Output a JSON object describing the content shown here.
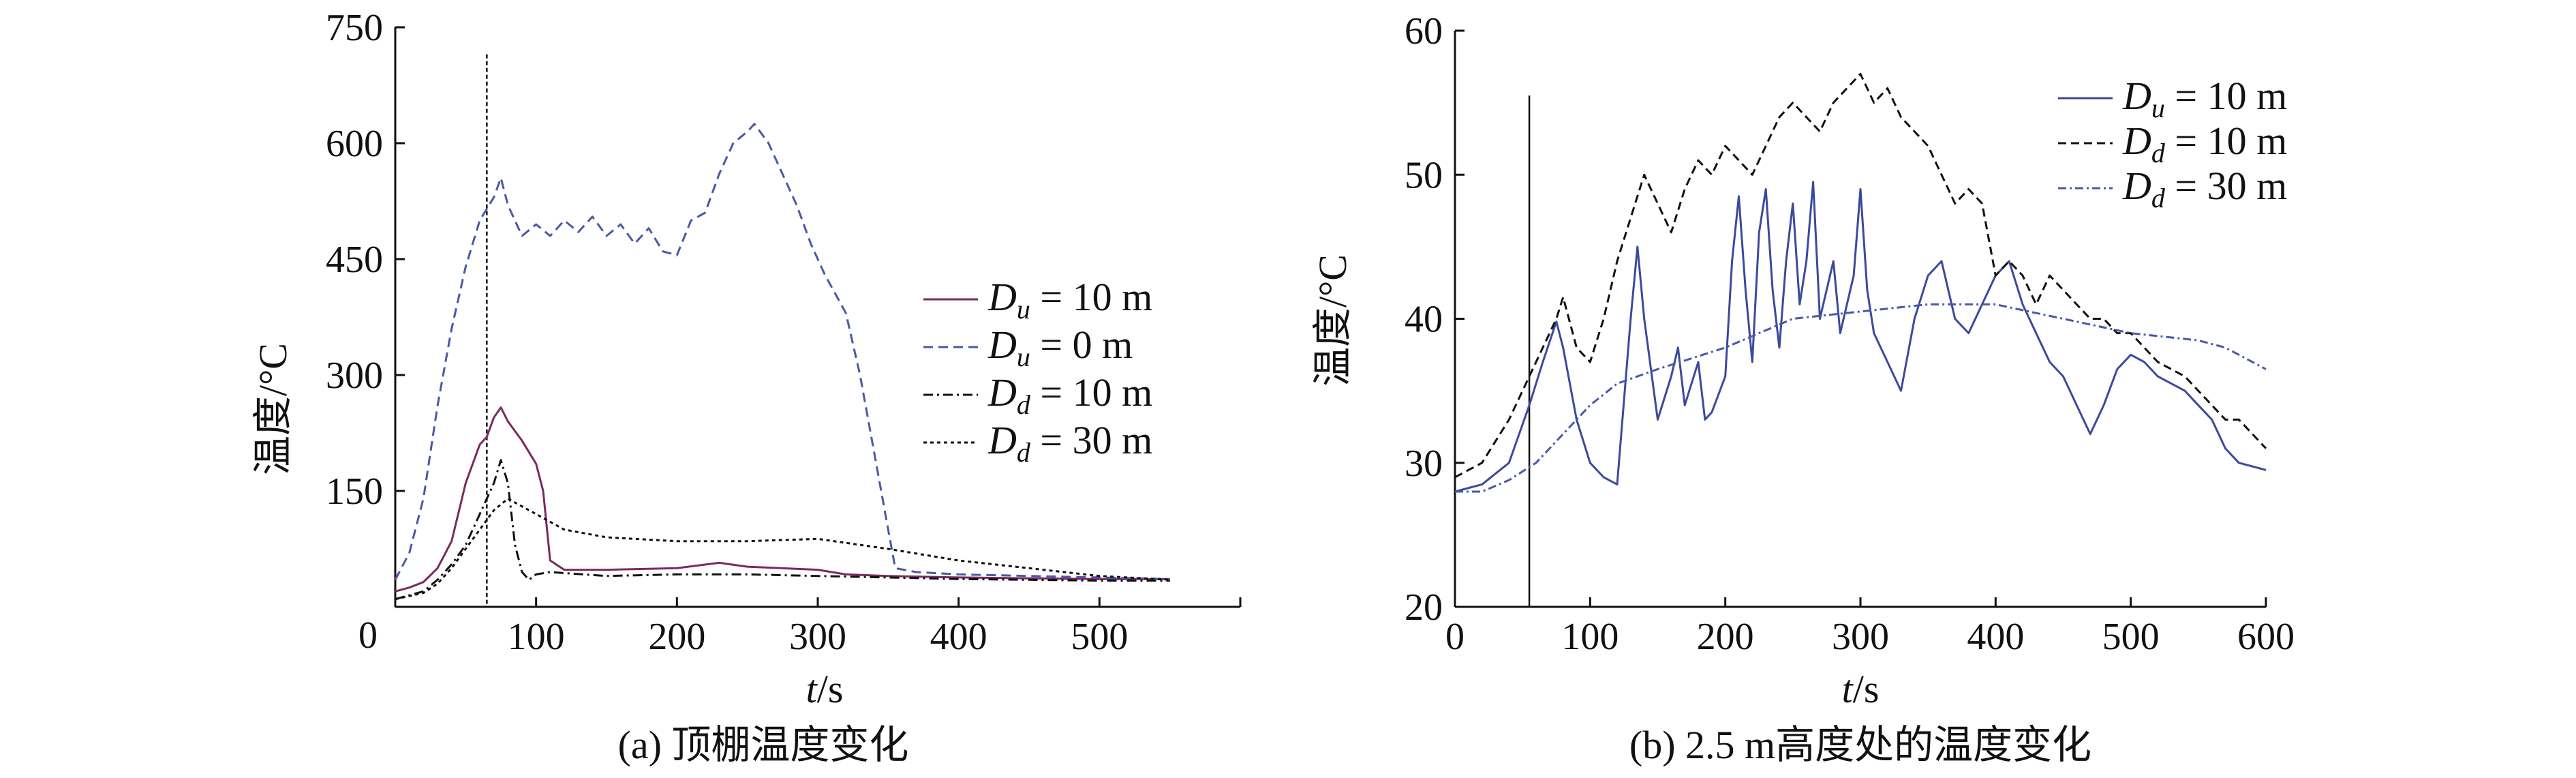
{
  "figure": {
    "caption_a": "(a) 顶棚温度变化",
    "caption_b": "(b) 2.5 m高度处的温度变化"
  },
  "chart_data": [
    {
      "type": "line",
      "id": "a",
      "title": "(a) 顶棚温度变化",
      "xlabel_italic": "t",
      "xlabel_rest": "/s",
      "ylabel": "温度/°C",
      "xlim": [
        0,
        600
      ],
      "ylim": [
        0,
        750
      ],
      "xticks": [
        0,
        100,
        200,
        300,
        400,
        500
      ],
      "yticks": [
        150,
        300,
        450,
        600,
        750
      ],
      "x_origin_label": "0",
      "grid": false,
      "legend_position": "middle-right",
      "vline_x": 65,
      "colors": {
        "axis": "#111111",
        "purple": "#7b2a5e",
        "blue": "#4a58a8",
        "black": "#111111"
      },
      "series": [
        {
          "name": "Du = 10 m",
          "sym": "D",
          "sub": "u",
          "rest": " = 10 m",
          "color": "#7b2a5e",
          "dash": "",
          "points": [
            [
              0,
              20
            ],
            [
              10,
              25
            ],
            [
              20,
              32
            ],
            [
              30,
              50
            ],
            [
              40,
              85
            ],
            [
              50,
              160
            ],
            [
              60,
              210
            ],
            [
              65,
              220
            ],
            [
              70,
              245
            ],
            [
              75,
              258
            ],
            [
              80,
              240
            ],
            [
              90,
              215
            ],
            [
              100,
              185
            ],
            [
              105,
              150
            ],
            [
              110,
              60
            ],
            [
              120,
              48
            ],
            [
              150,
              48
            ],
            [
              200,
              50
            ],
            [
              230,
              57
            ],
            [
              250,
              52
            ],
            [
              300,
              48
            ],
            [
              320,
              42
            ],
            [
              350,
              40
            ],
            [
              400,
              38
            ],
            [
              450,
              37
            ],
            [
              500,
              36
            ],
            [
              550,
              36
            ]
          ]
        },
        {
          "name": "Du = 0 m",
          "sym": "D",
          "sub": "u",
          "rest": " = 0 m",
          "color": "#4a58a8",
          "dash": "14,8",
          "points": [
            [
              0,
              35
            ],
            [
              10,
              70
            ],
            [
              20,
              140
            ],
            [
              30,
              260
            ],
            [
              40,
              360
            ],
            [
              50,
              440
            ],
            [
              60,
              500
            ],
            [
              70,
              530
            ],
            [
              75,
              555
            ],
            [
              80,
              520
            ],
            [
              90,
              480
            ],
            [
              100,
              495
            ],
            [
              110,
              480
            ],
            [
              120,
              500
            ],
            [
              130,
              485
            ],
            [
              140,
              505
            ],
            [
              150,
              480
            ],
            [
              160,
              495
            ],
            [
              170,
              470
            ],
            [
              180,
              490
            ],
            [
              190,
              460
            ],
            [
              200,
              455
            ],
            [
              210,
              500
            ],
            [
              220,
              510
            ],
            [
              230,
              560
            ],
            [
              240,
              600
            ],
            [
              250,
              615
            ],
            [
              255,
              625
            ],
            [
              265,
              600
            ],
            [
              275,
              560
            ],
            [
              285,
              520
            ],
            [
              295,
              470
            ],
            [
              305,
              430
            ],
            [
              320,
              380
            ],
            [
              330,
              300
            ],
            [
              340,
              200
            ],
            [
              350,
              100
            ],
            [
              355,
              50
            ],
            [
              370,
              45
            ],
            [
              400,
              42
            ],
            [
              450,
              40
            ],
            [
              500,
              38
            ],
            [
              550,
              36
            ]
          ]
        },
        {
          "name": "Dd = 10 m",
          "sym": "D",
          "sub": "d",
          "rest": " = 10 m",
          "color": "#111111",
          "dash": "14,6,3,6",
          "points": [
            [
              0,
              10
            ],
            [
              20,
              20
            ],
            [
              30,
              35
            ],
            [
              40,
              55
            ],
            [
              50,
              80
            ],
            [
              60,
              120
            ],
            [
              70,
              160
            ],
            [
              75,
              190
            ],
            [
              80,
              160
            ],
            [
              85,
              80
            ],
            [
              90,
              45
            ],
            [
              95,
              35
            ],
            [
              100,
              42
            ],
            [
              110,
              45
            ],
            [
              150,
              40
            ],
            [
              200,
              42
            ],
            [
              250,
              42
            ],
            [
              300,
              40
            ],
            [
              350,
              38
            ],
            [
              400,
              36
            ],
            [
              450,
              35
            ],
            [
              500,
              34
            ],
            [
              550,
              34
            ]
          ]
        },
        {
          "name": "Dd = 30 m",
          "sym": "D",
          "sub": "d",
          "rest": " = 30 m",
          "color": "#111111",
          "dash": "5,5",
          "points": [
            [
              0,
              10
            ],
            [
              20,
              18
            ],
            [
              30,
              30
            ],
            [
              40,
              50
            ],
            [
              50,
              75
            ],
            [
              60,
              100
            ],
            [
              70,
              125
            ],
            [
              80,
              140
            ],
            [
              90,
              130
            ],
            [
              100,
              120
            ],
            [
              120,
              100
            ],
            [
              150,
              90
            ],
            [
              200,
              85
            ],
            [
              250,
              85
            ],
            [
              300,
              88
            ],
            [
              350,
              75
            ],
            [
              400,
              60
            ],
            [
              450,
              50
            ],
            [
              500,
              40
            ],
            [
              550,
              35
            ]
          ]
        }
      ]
    },
    {
      "type": "line",
      "id": "b",
      "title": "(b) 2.5 m高度处的温度变化",
      "xlabel_italic": "t",
      "xlabel_rest": "/s",
      "ylabel": "温度/°C",
      "xlim": [
        0,
        600
      ],
      "ylim": [
        20,
        60
      ],
      "xticks": [
        0,
        100,
        200,
        300,
        400,
        500,
        600
      ],
      "yticks": [
        20,
        30,
        40,
        50,
        60
      ],
      "grid": false,
      "legend_position": "top-right",
      "vline_x": 55,
      "colors": {
        "axis": "#111111",
        "blue": "#3b4a9c",
        "black": "#111111",
        "blue_dashdot": "#4a58a8"
      },
      "series": [
        {
          "name": "Du = 10 m",
          "sym": "D",
          "sub": "u",
          "rest": " = 10 m",
          "color": "#3b4a9c",
          "dash": "",
          "points": [
            [
              0,
              28
            ],
            [
              20,
              28.5
            ],
            [
              40,
              30
            ],
            [
              55,
              34
            ],
            [
              65,
              37
            ],
            [
              75,
              39.8
            ],
            [
              80,
              38
            ],
            [
              90,
              33
            ],
            [
              100,
              30
            ],
            [
              110,
              29
            ],
            [
              120,
              28.5
            ],
            [
              130,
              40
            ],
            [
              135,
              45
            ],
            [
              140,
              40
            ],
            [
              150,
              33
            ],
            [
              160,
              36
            ],
            [
              165,
              38
            ],
            [
              170,
              34
            ],
            [
              180,
              37
            ],
            [
              185,
              33
            ],
            [
              190,
              33.5
            ],
            [
              200,
              36
            ],
            [
              205,
              44
            ],
            [
              210,
              48.5
            ],
            [
              215,
              42
            ],
            [
              220,
              37
            ],
            [
              225,
              46
            ],
            [
              230,
              49
            ],
            [
              235,
              42
            ],
            [
              240,
              38
            ],
            [
              245,
              44
            ],
            [
              250,
              48
            ],
            [
              255,
              41
            ],
            [
              260,
              44
            ],
            [
              265,
              49.5
            ],
            [
              270,
              40
            ],
            [
              275,
              42
            ],
            [
              280,
              44
            ],
            [
              285,
              39
            ],
            [
              290,
              41
            ],
            [
              295,
              43
            ],
            [
              300,
              49
            ],
            [
              305,
              42
            ],
            [
              310,
              39
            ],
            [
              320,
              37
            ],
            [
              330,
              35
            ],
            [
              340,
              40
            ],
            [
              350,
              43
            ],
            [
              360,
              44
            ],
            [
              370,
              40
            ],
            [
              380,
              39
            ],
            [
              390,
              41
            ],
            [
              400,
              43
            ],
            [
              410,
              44
            ],
            [
              420,
              41
            ],
            [
              430,
              39
            ],
            [
              440,
              37
            ],
            [
              450,
              36
            ],
            [
              460,
              34
            ],
            [
              470,
              32
            ],
            [
              480,
              34
            ],
            [
              490,
              36.5
            ],
            [
              500,
              37.5
            ],
            [
              510,
              37
            ],
            [
              520,
              36
            ],
            [
              530,
              35.5
            ],
            [
              540,
              35
            ],
            [
              550,
              34
            ],
            [
              560,
              33
            ],
            [
              570,
              31
            ],
            [
              580,
              30
            ],
            [
              600,
              29.5
            ]
          ]
        },
        {
          "name": "Dd = 10 m",
          "sym": "D",
          "sub": "d",
          "rest": " = 10 m",
          "color": "#111111",
          "dash": "12,7",
          "points": [
            [
              0,
              29
            ],
            [
              20,
              30
            ],
            [
              40,
              33
            ],
            [
              60,
              37
            ],
            [
              75,
              40
            ],
            [
              80,
              41.5
            ],
            [
              90,
              38
            ],
            [
              100,
              37
            ],
            [
              110,
              40
            ],
            [
              120,
              44
            ],
            [
              130,
              47
            ],
            [
              140,
              50
            ],
            [
              150,
              48
            ],
            [
              160,
              46
            ],
            [
              170,
              49
            ],
            [
              180,
              51
            ],
            [
              190,
              50
            ],
            [
              200,
              52
            ],
            [
              210,
              51
            ],
            [
              220,
              50
            ],
            [
              230,
              52
            ],
            [
              240,
              54
            ],
            [
              250,
              55
            ],
            [
              260,
              54
            ],
            [
              270,
              53
            ],
            [
              280,
              55
            ],
            [
              290,
              56
            ],
            [
              300,
              57
            ],
            [
              310,
              55
            ],
            [
              320,
              56
            ],
            [
              330,
              54
            ],
            [
              340,
              53
            ],
            [
              350,
              52
            ],
            [
              360,
              50
            ],
            [
              370,
              48
            ],
            [
              380,
              49
            ],
            [
              390,
              48
            ],
            [
              400,
              43
            ],
            [
              410,
              44
            ],
            [
              420,
              43
            ],
            [
              430,
              41
            ],
            [
              440,
              43
            ],
            [
              450,
              42
            ],
            [
              460,
              41
            ],
            [
              470,
              40
            ],
            [
              480,
              40
            ],
            [
              490,
              39
            ],
            [
              500,
              39
            ],
            [
              520,
              37
            ],
            [
              540,
              36
            ],
            [
              550,
              35
            ],
            [
              560,
              34
            ],
            [
              570,
              33
            ],
            [
              580,
              33
            ],
            [
              600,
              31
            ]
          ]
        },
        {
          "name": "Dd = 30 m",
          "sym": "D",
          "sub": "d",
          "rest": " = 30 m",
          "color": "#4a58a8",
          "dash": "12,5,3,5",
          "points": [
            [
              0,
              28
            ],
            [
              20,
              28
            ],
            [
              40,
              28.8
            ],
            [
              60,
              30
            ],
            [
              80,
              32
            ],
            [
              100,
              34
            ],
            [
              120,
              35.5
            ],
            [
              150,
              36.5
            ],
            [
              200,
              38
            ],
            [
              250,
              40
            ],
            [
              300,
              40.5
            ],
            [
              350,
              41
            ],
            [
              400,
              41
            ],
            [
              450,
              40
            ],
            [
              500,
              39
            ],
            [
              550,
              38.5
            ],
            [
              570,
              38
            ],
            [
              600,
              36.5
            ]
          ]
        }
      ]
    }
  ]
}
